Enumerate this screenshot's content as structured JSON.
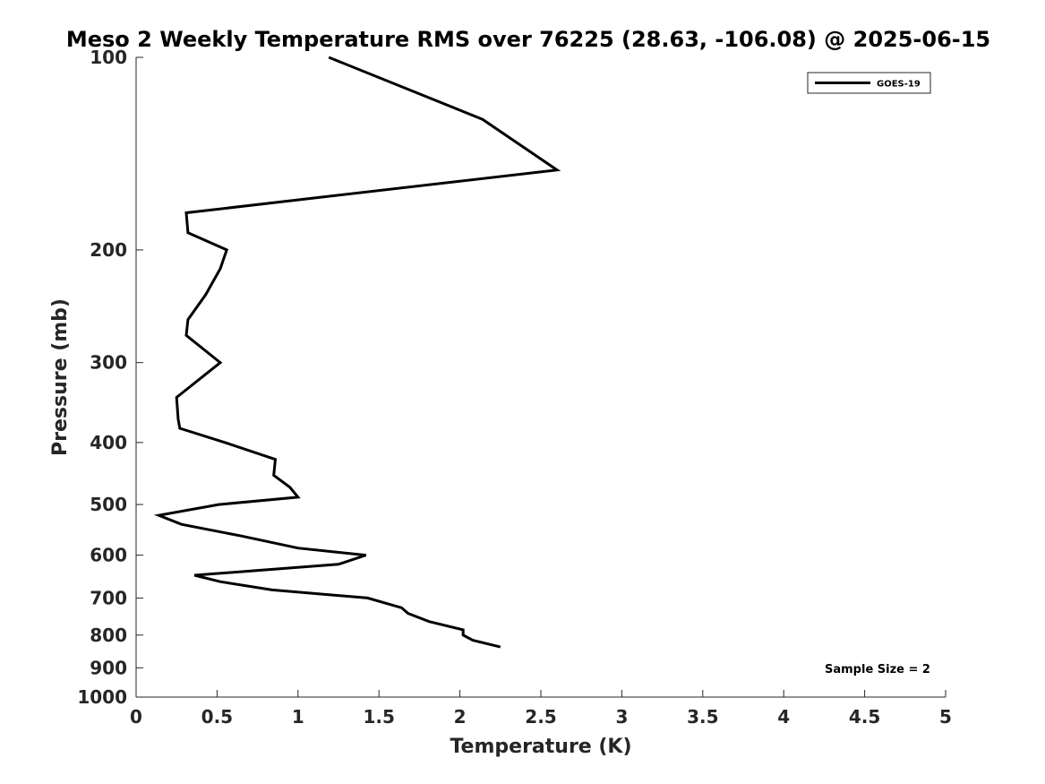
{
  "chart_data": {
    "type": "line",
    "title": "Meso 2 Weekly Temperature RMS over 76225 (28.63, -106.08) @ 2025-06-15",
    "xlabel": "Temperature (K)",
    "ylabel": "Pressure (mb)",
    "xlim": [
      0,
      5
    ],
    "ylim": [
      100,
      1000
    ],
    "yscale": "log",
    "y_reversed": true,
    "x_ticks": [
      "0",
      "0.5",
      "1",
      "1.5",
      "2",
      "2.5",
      "3",
      "3.5",
      "4",
      "4.5",
      "5"
    ],
    "y_ticks": [
      "100",
      "200",
      "300",
      "400",
      "500",
      "600",
      "700",
      "800",
      "900",
      "1000"
    ],
    "grid": false,
    "legend": {
      "position": "top-right",
      "entries": [
        "GOES-19"
      ]
    },
    "annotation": "Sample Size = 2",
    "series": [
      {
        "name": "GOES-19",
        "color": "#000000",
        "points": [
          {
            "x": 1.19,
            "p": 100
          },
          {
            "x": 2.14,
            "p": 125
          },
          {
            "x": 2.6,
            "p": 150
          },
          {
            "x": 0.31,
            "p": 175
          },
          {
            "x": 0.32,
            "p": 188
          },
          {
            "x": 0.56,
            "p": 200
          },
          {
            "x": 0.52,
            "p": 214
          },
          {
            "x": 0.43,
            "p": 235
          },
          {
            "x": 0.32,
            "p": 257
          },
          {
            "x": 0.31,
            "p": 272
          },
          {
            "x": 0.52,
            "p": 300
          },
          {
            "x": 0.25,
            "p": 340
          },
          {
            "x": 0.26,
            "p": 368
          },
          {
            "x": 0.27,
            "p": 380
          },
          {
            "x": 0.55,
            "p": 400
          },
          {
            "x": 0.86,
            "p": 425
          },
          {
            "x": 0.85,
            "p": 450
          },
          {
            "x": 0.95,
            "p": 470
          },
          {
            "x": 1.0,
            "p": 487
          },
          {
            "x": 0.51,
            "p": 500
          },
          {
            "x": 0.14,
            "p": 520
          },
          {
            "x": 0.28,
            "p": 537
          },
          {
            "x": 0.65,
            "p": 560
          },
          {
            "x": 1.0,
            "p": 585
          },
          {
            "x": 1.42,
            "p": 600
          },
          {
            "x": 1.25,
            "p": 620
          },
          {
            "x": 0.36,
            "p": 645
          },
          {
            "x": 0.52,
            "p": 660
          },
          {
            "x": 0.84,
            "p": 680
          },
          {
            "x": 1.43,
            "p": 700
          },
          {
            "x": 1.64,
            "p": 725
          },
          {
            "x": 1.68,
            "p": 740
          },
          {
            "x": 1.81,
            "p": 762
          },
          {
            "x": 2.02,
            "p": 785
          },
          {
            "x": 2.02,
            "p": 800
          },
          {
            "x": 2.08,
            "p": 815
          },
          {
            "x": 2.25,
            "p": 835
          }
        ]
      }
    ]
  }
}
